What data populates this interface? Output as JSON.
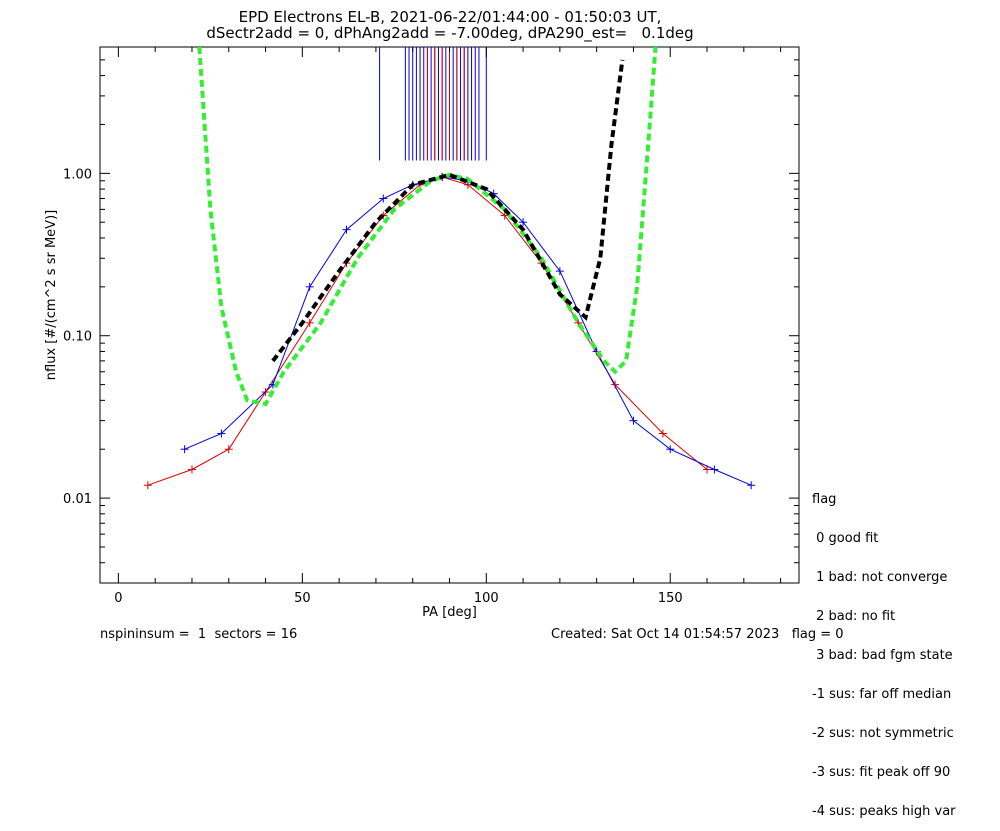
{
  "title_line1": "EPD Electrons EL-B, 2021-06-22/01:44:00 - 01:50:03 UT,",
  "title_line2": "dSectr2add = 0, dPhAng2add = -7.00deg, dPA290_est=   0.1deg",
  "footer": {
    "left": "nspininsum =  1  sectors = 16",
    "right": "Created: Sat Oct 14 01:54:57 2023   flag = 0"
  },
  "legend": {
    "title": "flag",
    "items": [
      " 0 good fit",
      " 1 bad: not converge",
      " 2 bad: no fit",
      " 3 bad: bad fgm state",
      "-1 sus: far off median",
      "-2 sus: not symmetric",
      "-3 sus: fit peak off 90",
      "-4 sus: peaks high var"
    ]
  },
  "colors": {
    "series_red": "#e00000",
    "series_blue": "#0000e0",
    "fit_green": "#33ee33",
    "fit_black": "#000000"
  },
  "chart_data": {
    "type": "line",
    "xlabel": "PA [deg]",
    "ylabel": "nflux [#/(cm^2 s sr MeV)]",
    "xlim": [
      -5,
      185
    ],
    "ylim": [
      0.003,
      6
    ],
    "yscale": "log",
    "x_ticks": [
      0,
      50,
      100,
      150
    ],
    "x_tick_labels": [
      "0",
      "50",
      "100",
      "150"
    ],
    "y_ticks": [
      0.01,
      0.1,
      1.0
    ],
    "y_tick_labels": [
      "0.01",
      "0.10",
      "1.00"
    ],
    "grid": false,
    "series": [
      {
        "color": "red",
        "style": "line-plus",
        "x": [
          8,
          20,
          30,
          40,
          52,
          62,
          72,
          82,
          88,
          95,
          105,
          115,
          125,
          135,
          148,
          160
        ],
        "y": [
          0.012,
          0.015,
          0.02,
          0.045,
          0.12,
          0.28,
          0.55,
          0.85,
          0.95,
          0.85,
          0.55,
          0.28,
          0.12,
          0.05,
          0.025,
          0.015
        ]
      },
      {
        "color": "blue",
        "style": "line-plus",
        "x": [
          18,
          28,
          42,
          52,
          62,
          72,
          80,
          88,
          95,
          102,
          110,
          120,
          130,
          140,
          150,
          162,
          172
        ],
        "y": [
          0.02,
          0.025,
          0.05,
          0.2,
          0.45,
          0.7,
          0.85,
          0.95,
          0.9,
          0.75,
          0.5,
          0.25,
          0.08,
          0.03,
          0.02,
          0.015,
          0.012
        ]
      },
      {
        "name": "",
        "color": "green",
        "style": "dashed",
        "x": [
          22,
          25,
          28,
          32,
          35,
          40,
          45,
          55,
          65,
          75,
          85,
          90,
          95,
          105,
          115,
          125,
          132,
          135,
          138,
          141,
          144,
          146
        ],
        "y": [
          6,
          0.6,
          0.15,
          0.06,
          0.04,
          0.038,
          0.06,
          0.12,
          0.3,
          0.6,
          0.9,
          0.98,
          0.92,
          0.6,
          0.3,
          0.12,
          0.07,
          0.06,
          0.07,
          0.2,
          1.5,
          6
        ]
      },
      {
        "name": "",
        "color": "black",
        "style": "dashed",
        "x": [
          42,
          50,
          60,
          70,
          80,
          90,
          100,
          110,
          120,
          127,
          131,
          134,
          137
        ],
        "y": [
          0.07,
          0.12,
          0.25,
          0.5,
          0.85,
          0.98,
          0.8,
          0.45,
          0.18,
          0.13,
          0.3,
          1.5,
          5
        ]
      }
    ],
    "vertical_markers": {
      "y_bottom": 1.2,
      "y_top": 6,
      "red_x": [
        84,
        86,
        88,
        90,
        92,
        94
      ],
      "blue_x": [
        71,
        78,
        79,
        80,
        81,
        82,
        83,
        84,
        85,
        86,
        87,
        88,
        89,
        90,
        91,
        92,
        93,
        94,
        95,
        96,
        97,
        98,
        100
      ]
    }
  }
}
